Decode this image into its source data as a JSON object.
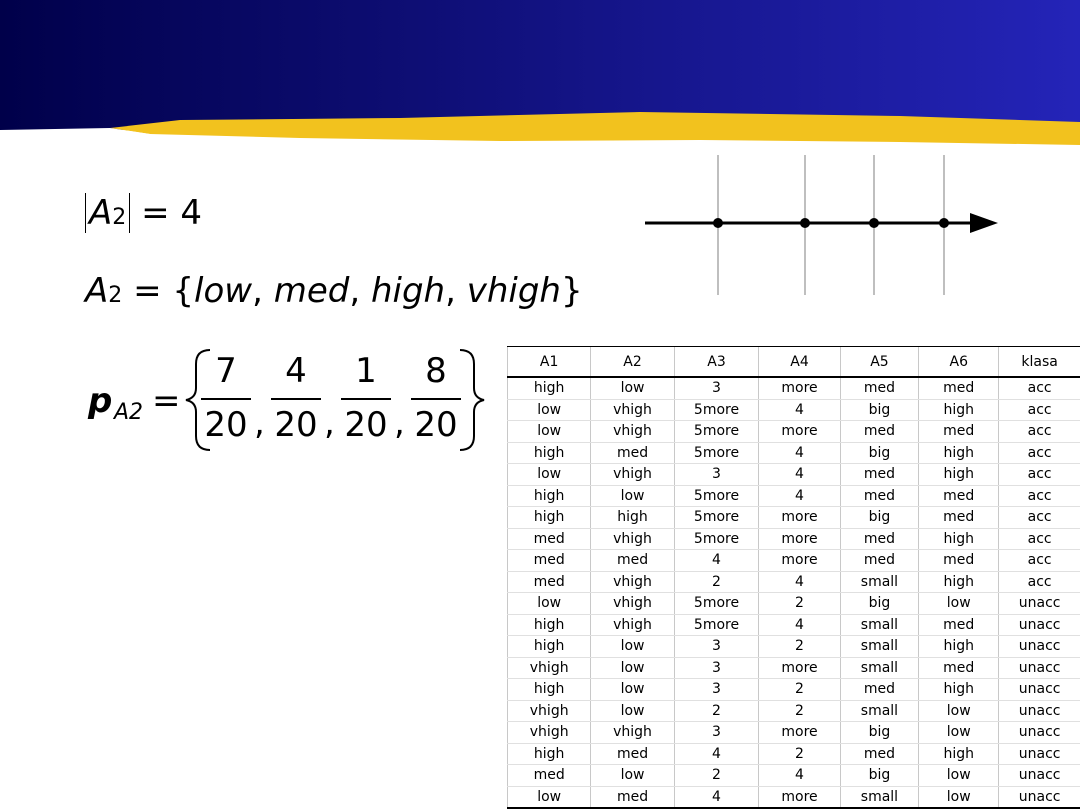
{
  "formula_cardinality": {
    "symbol": "A",
    "subscript": "2",
    "operator": "=",
    "value": "4"
  },
  "formula_domain": {
    "symbol": "A",
    "subscript": "2",
    "operator": "=",
    "open": "{",
    "close": "}",
    "separator": ",",
    "items": [
      "low",
      "med",
      "high",
      "vhigh"
    ]
  },
  "formula_probabilities": {
    "symbol": "p",
    "subscript": "A2",
    "operator": "=",
    "separator": ",",
    "numerators": [
      "7",
      "4",
      "1",
      "8"
    ],
    "denominator": "20"
  },
  "table": {
    "columns": [
      "A1",
      "A2",
      "A3",
      "A4",
      "A5",
      "A6",
      "klasa"
    ],
    "rows": [
      [
        "high",
        "low",
        "3",
        "more",
        "med",
        "med",
        "acc"
      ],
      [
        "low",
        "vhigh",
        "5more",
        "4",
        "big",
        "high",
        "acc"
      ],
      [
        "low",
        "vhigh",
        "5more",
        "more",
        "med",
        "med",
        "acc"
      ],
      [
        "high",
        "med",
        "5more",
        "4",
        "big",
        "high",
        "acc"
      ],
      [
        "low",
        "vhigh",
        "3",
        "4",
        "med",
        "high",
        "acc"
      ],
      [
        "high",
        "low",
        "5more",
        "4",
        "med",
        "med",
        "acc"
      ],
      [
        "high",
        "high",
        "5more",
        "more",
        "big",
        "med",
        "acc"
      ],
      [
        "med",
        "vhigh",
        "5more",
        "more",
        "med",
        "high",
        "acc"
      ],
      [
        "med",
        "med",
        "4",
        "more",
        "med",
        "med",
        "acc"
      ],
      [
        "med",
        "vhigh",
        "2",
        "4",
        "small",
        "high",
        "acc"
      ],
      [
        "low",
        "vhigh",
        "5more",
        "2",
        "big",
        "low",
        "unacc"
      ],
      [
        "high",
        "vhigh",
        "5more",
        "4",
        "small",
        "med",
        "unacc"
      ],
      [
        "high",
        "low",
        "3",
        "2",
        "small",
        "high",
        "unacc"
      ],
      [
        "vhigh",
        "low",
        "3",
        "more",
        "small",
        "med",
        "unacc"
      ],
      [
        "high",
        "low",
        "3",
        "2",
        "med",
        "high",
        "unacc"
      ],
      [
        "vhigh",
        "low",
        "2",
        "2",
        "small",
        "low",
        "unacc"
      ],
      [
        "vhigh",
        "vhigh",
        "3",
        "more",
        "big",
        "low",
        "unacc"
      ],
      [
        "high",
        "med",
        "4",
        "2",
        "med",
        "high",
        "unacc"
      ],
      [
        "med",
        "low",
        "2",
        "4",
        "big",
        "low",
        "unacc"
      ],
      [
        "low",
        "med",
        "4",
        "more",
        "small",
        "low",
        "unacc"
      ]
    ]
  }
}
